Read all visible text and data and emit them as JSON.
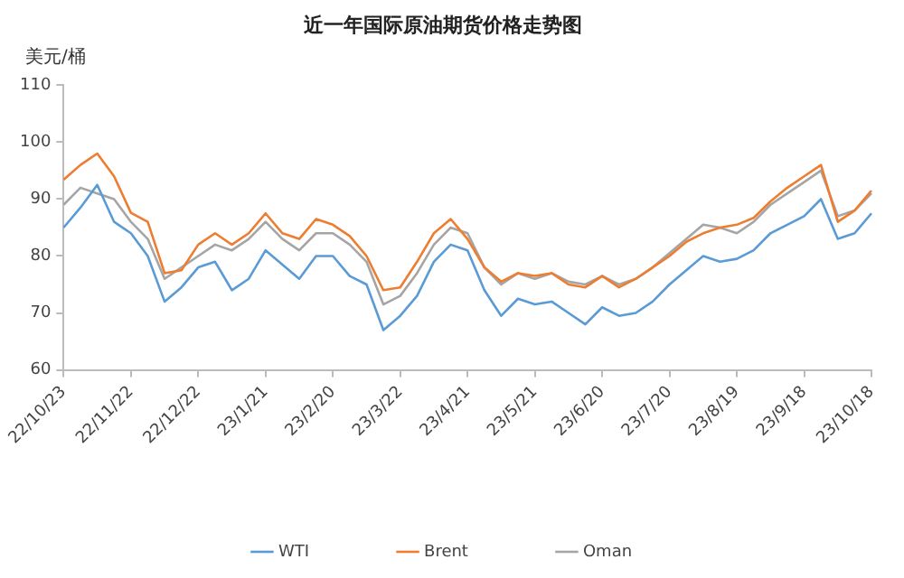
{
  "chart_data": {
    "type": "line",
    "title": "近一年国际原油期货价格走势图",
    "ylabel": "美元/桶",
    "categories": [
      "22/10/23",
      null,
      null,
      null,
      "22/11/22",
      null,
      null,
      null,
      "22/12/22",
      null,
      null,
      null,
      "23/1/21",
      null,
      null,
      null,
      "23/2/20",
      null,
      null,
      null,
      "23/3/22",
      null,
      null,
      null,
      "23/4/21",
      null,
      null,
      null,
      "23/5/21",
      null,
      null,
      null,
      "23/6/20",
      null,
      null,
      null,
      "23/7/20",
      null,
      null,
      null,
      "23/8/19",
      null,
      null,
      null,
      "23/9/18",
      null,
      null,
      null,
      "23/10/18"
    ],
    "series": [
      {
        "name": "WTI",
        "color": "#5b9bd5",
        "values": [
          85,
          88.5,
          92.5,
          86,
          84,
          80,
          72,
          74.5,
          78,
          79,
          74,
          76,
          81,
          78.5,
          76,
          80,
          80,
          76.5,
          75,
          67,
          69.5,
          73,
          79,
          82,
          81,
          74,
          69.5,
          72.5,
          71.5,
          72,
          70,
          68,
          71,
          69.5,
          70,
          72,
          75,
          77.5,
          80,
          79,
          79.5,
          81,
          84,
          85.5,
          87,
          90,
          83,
          84,
          87.5
        ]
      },
      {
        "name": "Brent",
        "color": "#ed7d31",
        "values": [
          93.4,
          96,
          98,
          94,
          87.6,
          86,
          77,
          77.5,
          82,
          84,
          82,
          84,
          87.5,
          84,
          83,
          86.5,
          85.5,
          83.5,
          80,
          74,
          74.5,
          79,
          84,
          86.5,
          83,
          78,
          75.5,
          77,
          76.5,
          77,
          75,
          74.5,
          76.5,
          74.5,
          76,
          78,
          80,
          82.5,
          84,
          85,
          85.5,
          86.7,
          89.6,
          92,
          94,
          96,
          86,
          88,
          91.5
        ]
      },
      {
        "name": "Oman",
        "color": "#a5a5a5",
        "values": [
          89,
          92,
          91,
          90,
          86,
          83,
          76,
          78,
          80,
          82,
          81,
          83,
          86,
          83,
          81,
          84,
          84,
          82,
          79,
          71.5,
          73,
          77,
          82,
          85,
          84,
          78,
          75,
          77,
          76,
          77,
          75.5,
          75,
          76.5,
          75,
          76,
          78,
          80.5,
          83,
          85.5,
          85,
          84,
          86,
          89,
          91,
          93,
          95,
          87,
          88,
          91
        ]
      }
    ],
    "ylim": [
      60,
      110
    ],
    "yticks": [
      60,
      70,
      80,
      90,
      100,
      110
    ],
    "grid": false,
    "legend": "bottom",
    "marker": "none",
    "line_style": "solid"
  }
}
